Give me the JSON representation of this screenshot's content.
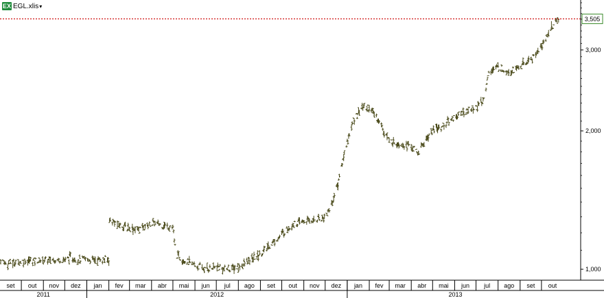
{
  "window": {
    "file_label": "EGL.xlis",
    "icon": "excel-icon",
    "icon_text": "EX",
    "dropdown_glyph": "▾"
  },
  "colors": {
    "price_bars": "#4a4a1a",
    "last_price_line": "#cc0000",
    "last_price_box_border": "#3a8a2a",
    "axis": "#000000"
  },
  "chart_data": {
    "type": "line",
    "subtype": "ohlc-bars",
    "title": "",
    "xlabel": "",
    "ylabel": "",
    "y_scale": "log",
    "ylim": [
      950,
      3800
    ],
    "y_ticks": [
      {
        "value": 1000,
        "label": "1,000"
      },
      {
        "value": 2000,
        "label": "2,000"
      },
      {
        "value": 3000,
        "label": "3,000"
      }
    ],
    "last_price": {
      "value": 3505,
      "label": "3,505"
    },
    "x_range": [
      "2011-09-01",
      "2013-10-31"
    ],
    "month_labels": [
      {
        "month": "2011-09",
        "label": "set"
      },
      {
        "month": "2011-10",
        "label": "out"
      },
      {
        "month": "2011-11",
        "label": "nov"
      },
      {
        "month": "2011-12",
        "label": "dez"
      },
      {
        "month": "2012-01",
        "label": "jan"
      },
      {
        "month": "2012-02",
        "label": "fev"
      },
      {
        "month": "2012-03",
        "label": "mar"
      },
      {
        "month": "2012-04",
        "label": "abr"
      },
      {
        "month": "2012-05",
        "label": "mai"
      },
      {
        "month": "2012-06",
        "label": "jun"
      },
      {
        "month": "2012-07",
        "label": "jul"
      },
      {
        "month": "2012-08",
        "label": "ago"
      },
      {
        "month": "2012-09",
        "label": "set"
      },
      {
        "month": "2012-10",
        "label": "out"
      },
      {
        "month": "2012-11",
        "label": "nov"
      },
      {
        "month": "2012-12",
        "label": "dez"
      },
      {
        "month": "2013-01",
        "label": "jan"
      },
      {
        "month": "2013-02",
        "label": "fev"
      },
      {
        "month": "2013-03",
        "label": "mar"
      },
      {
        "month": "2013-04",
        "label": "abr"
      },
      {
        "month": "2013-05",
        "label": "mai"
      },
      {
        "month": "2013-06",
        "label": "jun"
      },
      {
        "month": "2013-07",
        "label": "jul"
      },
      {
        "month": "2013-08",
        "label": "ago"
      },
      {
        "month": "2013-09",
        "label": "set"
      },
      {
        "month": "2013-10",
        "label": "out"
      }
    ],
    "year_labels": [
      {
        "year": "2011",
        "label": "2011",
        "from": "2011-09-01",
        "to": "2012-01-01"
      },
      {
        "year": "2012",
        "label": "2012",
        "from": "2012-01-01",
        "to": "2013-01-01"
      },
      {
        "year": "2013",
        "label": "2013",
        "from": "2013-01-01",
        "to": "2013-11-01"
      }
    ],
    "series": [
      {
        "x": [
          "2011-09-01",
          "2011-09-10",
          "2011-09-20",
          "2011-10-01",
          "2011-10-15",
          "2011-11-01",
          "2011-11-15",
          "2011-12-01",
          "2011-12-10",
          "2011-12-20",
          "2012-01-01",
          "2012-01-15",
          "2012-02-01",
          "2012-02-02",
          "2012-02-15",
          "2012-03-01",
          "2012-03-15",
          "2012-04-01",
          "2012-04-15",
          "2012-05-01",
          "2012-05-05",
          "2012-05-20",
          "2012-06-01",
          "2012-06-15",
          "2012-07-01",
          "2012-07-15",
          "2012-08-01",
          "2012-08-15",
          "2012-09-01",
          "2012-09-15",
          "2012-10-01",
          "2012-10-15",
          "2012-11-01",
          "2012-11-15",
          "2012-12-01",
          "2012-12-10",
          "2012-12-20",
          "2013-01-01",
          "2013-01-10",
          "2013-01-20",
          "2013-02-01",
          "2013-02-15",
          "2013-03-01",
          "2013-03-15",
          "2013-04-01",
          "2013-04-10",
          "2013-04-20",
          "2013-05-01",
          "2013-05-15",
          "2013-06-01",
          "2013-06-15",
          "2013-07-01",
          "2013-07-10",
          "2013-07-20",
          "2013-08-01",
          "2013-08-15",
          "2013-09-01",
          "2013-09-15",
          "2013-10-01",
          "2013-10-15",
          "2013-10-25"
        ],
        "close": [
          1050,
          1030,
          1035,
          1040,
          1045,
          1045,
          1050,
          1050,
          1060,
          1050,
          1050,
          1050,
          1050,
          1280,
          1250,
          1230,
          1220,
          1260,
          1250,
          1230,
          1080,
          1040,
          1020,
          1000,
          1010,
          1000,
          1010,
          1040,
          1080,
          1130,
          1190,
          1250,
          1270,
          1280,
          1300,
          1380,
          1560,
          1900,
          2100,
          2250,
          2250,
          2100,
          1900,
          1880,
          1850,
          1780,
          1900,
          2000,
          2050,
          2150,
          2200,
          2250,
          2300,
          2700,
          2750,
          2700,
          2750,
          2850,
          3050,
          3350,
          3505
        ]
      }
    ]
  }
}
